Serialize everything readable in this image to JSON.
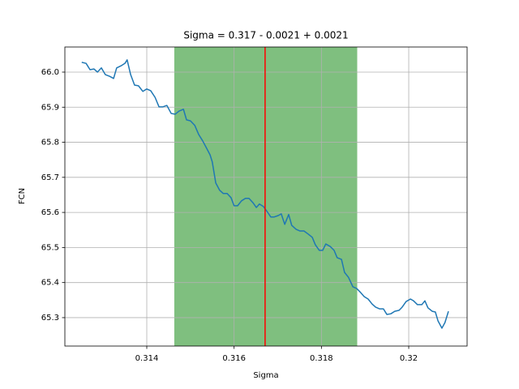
{
  "chart_data": {
    "type": "line",
    "title": "Sigma = 0.317 - 0.0021 + 0.0021",
    "x_label": "Sigma",
    "y_label": "FCN",
    "xlim": [
      0.312124,
      0.321337
    ],
    "ylim": [
      65.219,
      66.0716
    ],
    "xticks": [
      0.314,
      0.316,
      0.318,
      0.32
    ],
    "yticks": [
      65.3,
      65.4,
      65.5,
      65.6,
      65.7,
      65.8,
      65.9,
      {
        "value": 66,
        "label": "66.0"
      }
    ],
    "grid": true,
    "band": {
      "range": [
        0.31463,
        0.31882
      ],
      "color": "#008000",
      "opacity": 0.5
    },
    "vline": {
      "value": 0.31671,
      "color": "#ff0000"
    },
    "series": [
      {
        "color": "#1f77b4",
        "x": [
          0.31251,
          0.31261,
          0.3127,
          0.31279,
          0.31287,
          0.31296,
          0.31305,
          0.31315,
          0.31324,
          0.31331,
          0.31341,
          0.3135,
          0.31355,
          0.31363,
          0.31372,
          0.31381,
          0.31391,
          0.314,
          0.31409,
          0.31419,
          0.31428,
          0.31437,
          0.31446,
          0.31456,
          0.31465,
          0.31474,
          0.31484,
          0.31491,
          0.315,
          0.3151,
          0.31519,
          0.31528,
          0.31537,
          0.31545,
          0.3155,
          0.31558,
          0.31567,
          0.31575,
          0.31584,
          0.31593,
          0.316,
          0.31608,
          0.31617,
          0.31626,
          0.31634,
          0.31643,
          0.31651,
          0.31658,
          0.31667,
          0.31677,
          0.31684,
          0.31692,
          0.31701,
          0.31708,
          0.31716,
          0.31725,
          0.31732,
          0.31742,
          0.31751,
          0.3176,
          0.3177,
          0.31779,
          0.31786,
          0.31795,
          0.31803,
          0.3181,
          0.3182,
          0.31829,
          0.31836,
          0.31846,
          0.31853,
          0.31862,
          0.31872,
          0.31881,
          0.31888,
          0.31898,
          0.31907,
          0.31916,
          0.31924,
          0.31933,
          0.31942,
          0.3195,
          0.31959,
          0.31968,
          0.31978,
          0.31985,
          0.31994,
          0.32004,
          0.32011,
          0.3202,
          0.3203,
          0.32037,
          0.32044,
          0.32054,
          0.32061,
          0.32067,
          0.32076,
          0.32083,
          0.32091
        ],
        "values": [
          66.028,
          66.025,
          66.007,
          66.009,
          66.0,
          66.012,
          65.993,
          65.988,
          65.982,
          66.012,
          66.018,
          66.025,
          66.035,
          65.993,
          65.963,
          65.961,
          65.945,
          65.952,
          65.947,
          65.928,
          65.901,
          65.901,
          65.905,
          65.882,
          65.88,
          65.889,
          65.894,
          65.864,
          65.861,
          65.848,
          65.822,
          65.804,
          65.783,
          65.764,
          65.744,
          65.684,
          65.663,
          65.654,
          65.654,
          65.642,
          65.619,
          65.619,
          65.633,
          65.64,
          65.64,
          65.628,
          65.614,
          65.624,
          65.617,
          65.6,
          65.587,
          65.587,
          65.591,
          65.596,
          65.566,
          65.594,
          65.563,
          65.552,
          65.547,
          65.547,
          65.538,
          65.529,
          65.508,
          65.492,
          65.492,
          65.51,
          65.503,
          65.492,
          65.471,
          65.466,
          65.429,
          65.415,
          65.388,
          65.383,
          65.374,
          65.36,
          65.353,
          65.339,
          65.33,
          65.325,
          65.325,
          65.309,
          65.311,
          65.318,
          65.321,
          65.33,
          65.346,
          65.353,
          65.348,
          65.337,
          65.337,
          65.348,
          65.328,
          65.318,
          65.316,
          65.291,
          65.27,
          65.286,
          65.318
        ]
      }
    ]
  }
}
